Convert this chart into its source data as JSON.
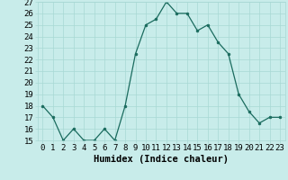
{
  "x": [
    0,
    1,
    2,
    3,
    4,
    5,
    6,
    7,
    8,
    9,
    10,
    11,
    12,
    13,
    14,
    15,
    16,
    17,
    18,
    19,
    20,
    21,
    22,
    23
  ],
  "y": [
    18,
    17,
    15,
    16,
    15,
    15,
    16,
    15,
    18,
    22.5,
    25,
    25.5,
    27,
    26,
    26,
    24.5,
    25,
    23.5,
    22.5,
    19,
    17.5,
    16.5,
    17,
    17
  ],
  "line_color": "#1a6b5e",
  "marker": "o",
  "marker_size": 2,
  "bg_color": "#c8ecea",
  "grid_color": "#a8d8d4",
  "xlabel": "Humidex (Indice chaleur)",
  "ylim": [
    15,
    27
  ],
  "xlim": [
    -0.5,
    23.5
  ],
  "yticks": [
    15,
    16,
    17,
    18,
    19,
    20,
    21,
    22,
    23,
    24,
    25,
    26,
    27
  ],
  "xticks": [
    0,
    1,
    2,
    3,
    4,
    5,
    6,
    7,
    8,
    9,
    10,
    11,
    12,
    13,
    14,
    15,
    16,
    17,
    18,
    19,
    20,
    21,
    22,
    23
  ],
  "tick_fontsize": 6.5,
  "xlabel_fontsize": 7.5
}
